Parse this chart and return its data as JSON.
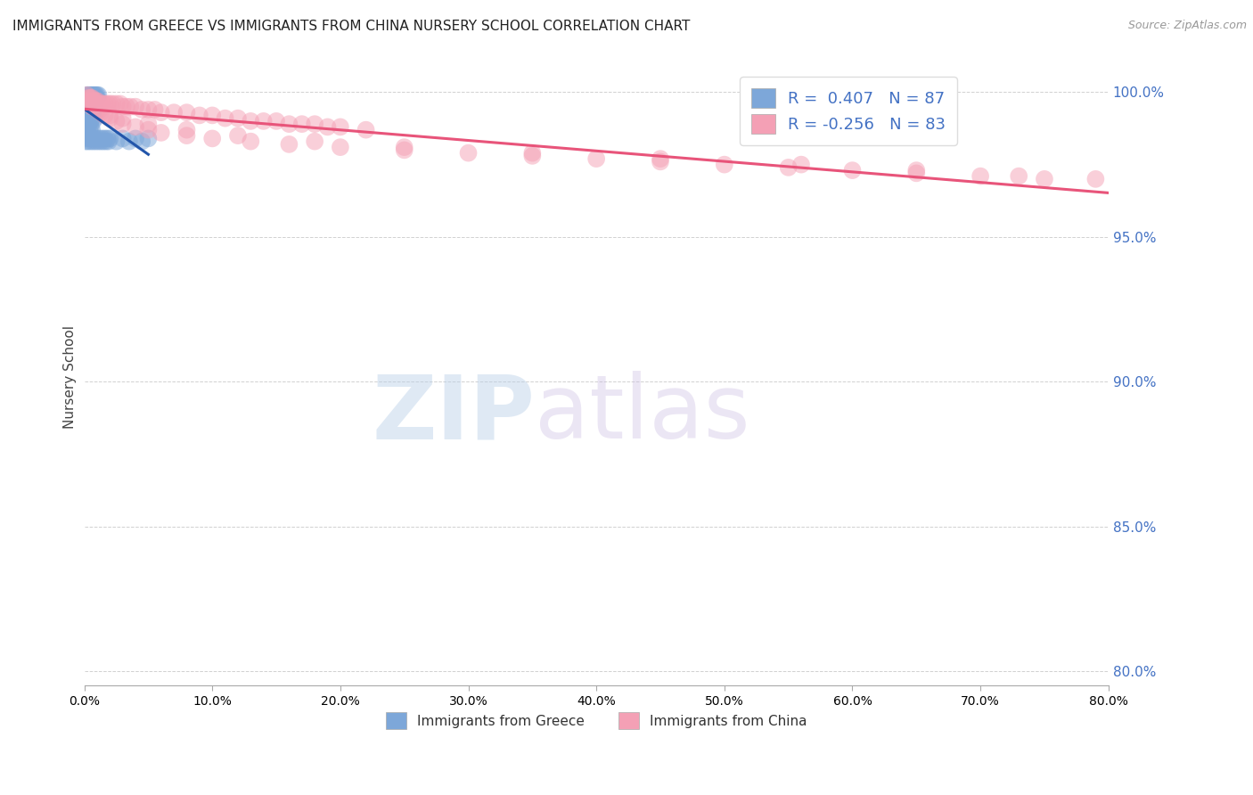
{
  "title": "IMMIGRANTS FROM GREECE VS IMMIGRANTS FROM CHINA NURSERY SCHOOL CORRELATION CHART",
  "source": "Source: ZipAtlas.com",
  "ylabel": "Nursery School",
  "xlim": [
    0.0,
    0.8
  ],
  "ylim": [
    0.795,
    1.008
  ],
  "y_ticks": [
    0.8,
    0.85,
    0.9,
    0.95,
    1.0
  ],
  "x_ticks": [
    0.0,
    0.1,
    0.2,
    0.3,
    0.4,
    0.5,
    0.6,
    0.7,
    0.8
  ],
  "greece_R": 0.407,
  "greece_N": 87,
  "china_R": -0.256,
  "china_N": 83,
  "greece_color": "#7da7d9",
  "china_color": "#f4a0b5",
  "greece_line_color": "#2255aa",
  "china_line_color": "#e8547a",
  "background_color": "#ffffff",
  "greece_x": [
    0.001,
    0.002,
    0.002,
    0.003,
    0.003,
    0.004,
    0.004,
    0.005,
    0.005,
    0.006,
    0.006,
    0.007,
    0.007,
    0.008,
    0.008,
    0.009,
    0.009,
    0.01,
    0.01,
    0.011,
    0.001,
    0.002,
    0.002,
    0.003,
    0.003,
    0.004,
    0.004,
    0.005,
    0.005,
    0.006,
    0.006,
    0.007,
    0.007,
    0.008,
    0.008,
    0.001,
    0.002,
    0.002,
    0.003,
    0.003,
    0.004,
    0.004,
    0.005,
    0.005,
    0.006,
    0.006,
    0.007,
    0.007,
    0.002,
    0.003,
    0.003,
    0.004,
    0.005,
    0.006,
    0.007,
    0.008,
    0.002,
    0.003,
    0.004,
    0.005,
    0.006,
    0.001,
    0.002,
    0.003,
    0.004,
    0.005,
    0.006,
    0.007,
    0.008,
    0.009,
    0.01,
    0.011,
    0.012,
    0.013,
    0.014,
    0.015,
    0.016,
    0.017,
    0.018,
    0.019,
    0.02,
    0.025,
    0.03,
    0.035,
    0.04,
    0.045,
    0.05
  ],
  "greece_y": [
    0.998,
    0.999,
    0.998,
    0.999,
    0.998,
    0.999,
    0.998,
    0.999,
    0.998,
    0.999,
    0.998,
    0.999,
    0.998,
    0.999,
    0.998,
    0.999,
    0.998,
    0.999,
    0.998,
    0.999,
    0.996,
    0.997,
    0.996,
    0.997,
    0.996,
    0.997,
    0.996,
    0.997,
    0.996,
    0.997,
    0.996,
    0.997,
    0.996,
    0.997,
    0.996,
    0.993,
    0.994,
    0.993,
    0.994,
    0.993,
    0.994,
    0.993,
    0.994,
    0.993,
    0.994,
    0.993,
    0.994,
    0.993,
    0.99,
    0.991,
    0.99,
    0.991,
    0.99,
    0.991,
    0.99,
    0.991,
    0.987,
    0.988,
    0.987,
    0.988,
    0.987,
    0.983,
    0.984,
    0.983,
    0.984,
    0.983,
    0.984,
    0.983,
    0.984,
    0.983,
    0.984,
    0.983,
    0.984,
    0.983,
    0.984,
    0.983,
    0.984,
    0.983,
    0.984,
    0.983,
    0.984,
    0.983,
    0.984,
    0.983,
    0.984,
    0.983,
    0.984
  ],
  "china_x": [
    0.002,
    0.003,
    0.004,
    0.005,
    0.006,
    0.007,
    0.008,
    0.009,
    0.01,
    0.012,
    0.014,
    0.016,
    0.018,
    0.02,
    0.022,
    0.025,
    0.028,
    0.03,
    0.033,
    0.036,
    0.04,
    0.045,
    0.05,
    0.055,
    0.06,
    0.07,
    0.08,
    0.09,
    0.1,
    0.11,
    0.12,
    0.13,
    0.14,
    0.15,
    0.16,
    0.17,
    0.18,
    0.19,
    0.2,
    0.22,
    0.003,
    0.005,
    0.007,
    0.01,
    0.013,
    0.016,
    0.02,
    0.025,
    0.03,
    0.04,
    0.05,
    0.06,
    0.08,
    0.1,
    0.13,
    0.16,
    0.2,
    0.25,
    0.3,
    0.35,
    0.4,
    0.45,
    0.5,
    0.55,
    0.6,
    0.65,
    0.7,
    0.75,
    0.006,
    0.012,
    0.02,
    0.03,
    0.05,
    0.08,
    0.12,
    0.18,
    0.25,
    0.35,
    0.45,
    0.56,
    0.65,
    0.73,
    0.79
  ],
  "china_y": [
    0.999,
    0.998,
    0.998,
    0.998,
    0.998,
    0.997,
    0.997,
    0.997,
    0.997,
    0.996,
    0.996,
    0.996,
    0.996,
    0.996,
    0.996,
    0.996,
    0.996,
    0.995,
    0.995,
    0.995,
    0.995,
    0.994,
    0.994,
    0.994,
    0.993,
    0.993,
    0.993,
    0.992,
    0.992,
    0.991,
    0.991,
    0.99,
    0.99,
    0.99,
    0.989,
    0.989,
    0.989,
    0.988,
    0.988,
    0.987,
    0.997,
    0.996,
    0.995,
    0.994,
    0.993,
    0.992,
    0.991,
    0.99,
    0.989,
    0.988,
    0.987,
    0.986,
    0.985,
    0.984,
    0.983,
    0.982,
    0.981,
    0.98,
    0.979,
    0.978,
    0.977,
    0.976,
    0.975,
    0.974,
    0.973,
    0.972,
    0.971,
    0.97,
    0.995,
    0.994,
    0.992,
    0.991,
    0.989,
    0.987,
    0.985,
    0.983,
    0.981,
    0.979,
    0.977,
    0.975,
    0.973,
    0.971,
    0.97
  ]
}
